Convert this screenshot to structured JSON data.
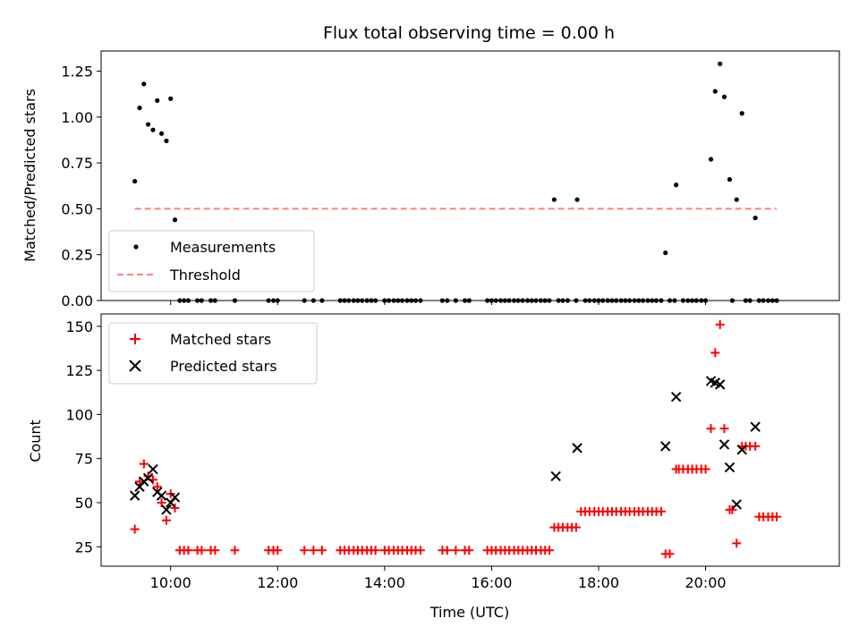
{
  "title": "Flux total observing time = 0.00 h",
  "chart_data": [
    {
      "type": "scatter",
      "panel": "top",
      "ylabel": "Matched/Predicted stars",
      "ylim": [
        0,
        1.36
      ],
      "yticks": [
        0.0,
        0.25,
        0.5,
        0.75,
        1.0,
        1.25
      ],
      "ytick_labels": [
        "0.00",
        "0.25",
        "0.50",
        "0.75",
        "1.00",
        "1.25"
      ],
      "xlim": [
        8.7,
        22.5
      ],
      "legend": {
        "position": "lower-left",
        "entries": [
          {
            "label": "Measurements",
            "marker": "dot",
            "color": "#000000"
          },
          {
            "label": "Threshold",
            "marker": "dashed-line",
            "color": "#ff7f7f"
          }
        ]
      },
      "threshold": {
        "y": 0.5,
        "x": [
          9.33,
          21.33
        ],
        "color": "#ff7f7f"
      },
      "series": [
        {
          "name": "Measurements",
          "color": "#000000",
          "points": [
            [
              9.33,
              0.65
            ],
            [
              9.42,
              1.05
            ],
            [
              9.5,
              1.18
            ],
            [
              9.58,
              0.96
            ],
            [
              9.67,
              0.93
            ],
            [
              9.75,
              1.09
            ],
            [
              9.83,
              0.91
            ],
            [
              9.92,
              0.87
            ],
            [
              10.0,
              1.1
            ],
            [
              10.08,
              0.44
            ],
            [
              17.17,
              0.55
            ],
            [
              17.6,
              0.55
            ],
            [
              19.25,
              0.26
            ],
            [
              19.45,
              0.63
            ],
            [
              20.1,
              0.77
            ],
            [
              20.18,
              1.14
            ],
            [
              20.27,
              1.29
            ],
            [
              20.35,
              1.11
            ],
            [
              20.45,
              0.66
            ],
            [
              20.58,
              0.55
            ],
            [
              20.68,
              1.02
            ],
            [
              20.93,
              0.45
            ],
            [
              10.17,
              0
            ],
            [
              10.25,
              0
            ],
            [
              10.33,
              0
            ],
            [
              10.5,
              0
            ],
            [
              10.58,
              0
            ],
            [
              10.75,
              0
            ],
            [
              10.83,
              0
            ],
            [
              11.2,
              0
            ],
            [
              11.83,
              0
            ],
            [
              11.92,
              0
            ],
            [
              12.0,
              0
            ],
            [
              12.5,
              0
            ],
            [
              12.67,
              0
            ],
            [
              12.83,
              0
            ],
            [
              13.17,
              0
            ],
            [
              13.25,
              0
            ],
            [
              13.33,
              0
            ],
            [
              13.42,
              0
            ],
            [
              13.5,
              0
            ],
            [
              13.58,
              0
            ],
            [
              13.67,
              0
            ],
            [
              13.75,
              0
            ],
            [
              13.83,
              0
            ],
            [
              14.0,
              0
            ],
            [
              14.08,
              0
            ],
            [
              14.17,
              0
            ],
            [
              14.25,
              0
            ],
            [
              14.33,
              0
            ],
            [
              14.42,
              0
            ],
            [
              14.5,
              0
            ],
            [
              14.58,
              0
            ],
            [
              14.67,
              0
            ],
            [
              15.08,
              0
            ],
            [
              15.17,
              0
            ],
            [
              15.33,
              0
            ],
            [
              15.5,
              0
            ],
            [
              15.58,
              0
            ],
            [
              15.92,
              0
            ],
            [
              16.0,
              0
            ],
            [
              16.08,
              0
            ],
            [
              16.17,
              0
            ],
            [
              16.25,
              0
            ],
            [
              16.33,
              0
            ],
            [
              16.42,
              0
            ],
            [
              16.5,
              0
            ],
            [
              16.58,
              0
            ],
            [
              16.67,
              0
            ],
            [
              16.75,
              0
            ],
            [
              16.83,
              0
            ],
            [
              16.92,
              0
            ],
            [
              17.0,
              0
            ],
            [
              17.08,
              0
            ],
            [
              17.25,
              0
            ],
            [
              17.33,
              0
            ],
            [
              17.42,
              0
            ],
            [
              17.58,
              0
            ],
            [
              17.75,
              0
            ],
            [
              17.83,
              0
            ],
            [
              17.92,
              0
            ],
            [
              18.0,
              0
            ],
            [
              18.08,
              0
            ],
            [
              18.17,
              0
            ],
            [
              18.25,
              0
            ],
            [
              18.33,
              0
            ],
            [
              18.42,
              0
            ],
            [
              18.5,
              0
            ],
            [
              18.58,
              0
            ],
            [
              18.67,
              0
            ],
            [
              18.75,
              0
            ],
            [
              18.83,
              0
            ],
            [
              18.92,
              0
            ],
            [
              19.0,
              0
            ],
            [
              19.08,
              0
            ],
            [
              19.17,
              0
            ],
            [
              19.33,
              0
            ],
            [
              19.42,
              0
            ],
            [
              19.58,
              0
            ],
            [
              19.67,
              0
            ],
            [
              19.75,
              0
            ],
            [
              19.83,
              0
            ],
            [
              19.92,
              0
            ],
            [
              20.0,
              0
            ],
            [
              20.5,
              0
            ],
            [
              20.75,
              0
            ],
            [
              20.83,
              0
            ],
            [
              21.0,
              0
            ],
            [
              21.08,
              0
            ],
            [
              21.17,
              0
            ],
            [
              21.25,
              0
            ],
            [
              21.33,
              0
            ]
          ]
        }
      ]
    },
    {
      "type": "scatter",
      "panel": "bottom",
      "xlabel": "Time (UTC)",
      "ylabel": "Count",
      "ylim": [
        14,
        157
      ],
      "yticks": [
        25,
        50,
        75,
        100,
        125,
        150
      ],
      "ytick_labels": [
        "25",
        "50",
        "75",
        "100",
        "125",
        "150"
      ],
      "xlim": [
        8.7,
        22.5
      ],
      "xticks": [
        10,
        12,
        14,
        16,
        18,
        20
      ],
      "xtick_labels": [
        "10:00",
        "12:00",
        "14:00",
        "16:00",
        "18:00",
        "20:00"
      ],
      "legend": {
        "position": "top-left",
        "entries": [
          {
            "label": "Matched stars",
            "marker": "plus",
            "color": "#ff0000"
          },
          {
            "label": "Predicted stars",
            "marker": "x",
            "color": "#000000"
          }
        ]
      },
      "series": [
        {
          "name": "Matched stars",
          "marker": "plus",
          "color": "#ff0000",
          "points": [
            [
              9.33,
              35
            ],
            [
              9.42,
              62
            ],
            [
              9.5,
              72
            ],
            [
              9.58,
              65
            ],
            [
              9.67,
              63
            ],
            [
              9.75,
              59
            ],
            [
              9.83,
              50
            ],
            [
              9.92,
              40
            ],
            [
              10.0,
              55
            ],
            [
              10.08,
              47
            ],
            [
              10.17,
              23
            ],
            [
              10.25,
              23
            ],
            [
              10.33,
              23
            ],
            [
              10.5,
              23
            ],
            [
              10.58,
              23
            ],
            [
              10.75,
              23
            ],
            [
              10.83,
              23
            ],
            [
              11.2,
              23
            ],
            [
              11.83,
              23
            ],
            [
              11.92,
              23
            ],
            [
              12.0,
              23
            ],
            [
              12.5,
              23
            ],
            [
              12.67,
              23
            ],
            [
              12.83,
              23
            ],
            [
              13.17,
              23
            ],
            [
              13.25,
              23
            ],
            [
              13.33,
              23
            ],
            [
              13.42,
              23
            ],
            [
              13.5,
              23
            ],
            [
              13.58,
              23
            ],
            [
              13.67,
              23
            ],
            [
              13.75,
              23
            ],
            [
              13.83,
              23
            ],
            [
              14.0,
              23
            ],
            [
              14.08,
              23
            ],
            [
              14.17,
              23
            ],
            [
              14.25,
              23
            ],
            [
              14.33,
              23
            ],
            [
              14.42,
              23
            ],
            [
              14.5,
              23
            ],
            [
              14.58,
              23
            ],
            [
              14.67,
              23
            ],
            [
              15.08,
              23
            ],
            [
              15.17,
              23
            ],
            [
              15.33,
              23
            ],
            [
              15.5,
              23
            ],
            [
              15.58,
              23
            ],
            [
              15.92,
              23
            ],
            [
              16.0,
              23
            ],
            [
              16.08,
              23
            ],
            [
              16.17,
              23
            ],
            [
              16.25,
              23
            ],
            [
              16.33,
              23
            ],
            [
              16.42,
              23
            ],
            [
              16.5,
              23
            ],
            [
              16.58,
              23
            ],
            [
              16.67,
              23
            ],
            [
              16.75,
              23
            ],
            [
              16.83,
              23
            ],
            [
              16.92,
              23
            ],
            [
              17.0,
              23
            ],
            [
              17.08,
              23
            ],
            [
              17.17,
              36
            ],
            [
              17.25,
              36
            ],
            [
              17.33,
              36
            ],
            [
              17.42,
              36
            ],
            [
              17.5,
              36
            ],
            [
              17.58,
              36
            ],
            [
              17.67,
              45
            ],
            [
              17.75,
              45
            ],
            [
              17.83,
              45
            ],
            [
              17.92,
              45
            ],
            [
              18.0,
              45
            ],
            [
              18.08,
              45
            ],
            [
              18.17,
              45
            ],
            [
              18.25,
              45
            ],
            [
              18.33,
              45
            ],
            [
              18.42,
              45
            ],
            [
              18.5,
              45
            ],
            [
              18.58,
              45
            ],
            [
              18.67,
              45
            ],
            [
              18.75,
              45
            ],
            [
              18.83,
              45
            ],
            [
              18.92,
              45
            ],
            [
              19.0,
              45
            ],
            [
              19.08,
              45
            ],
            [
              19.17,
              45
            ],
            [
              19.25,
              21
            ],
            [
              19.33,
              21
            ],
            [
              19.45,
              69
            ],
            [
              19.5,
              69
            ],
            [
              19.58,
              69
            ],
            [
              19.67,
              69
            ],
            [
              19.75,
              69
            ],
            [
              19.83,
              69
            ],
            [
              19.92,
              69
            ],
            [
              20.0,
              69
            ],
            [
              20.1,
              92
            ],
            [
              20.18,
              135
            ],
            [
              20.27,
              151
            ],
            [
              20.35,
              92
            ],
            [
              20.45,
              46
            ],
            [
              20.5,
              46
            ],
            [
              20.58,
              27
            ],
            [
              20.68,
              82
            ],
            [
              20.75,
              82
            ],
            [
              20.83,
              82
            ],
            [
              20.93,
              82
            ],
            [
              21.0,
              42
            ],
            [
              21.08,
              42
            ],
            [
              21.17,
              42
            ],
            [
              21.25,
              42
            ],
            [
              21.33,
              42
            ]
          ]
        },
        {
          "name": "Predicted stars",
          "marker": "x",
          "color": "#000000",
          "points": [
            [
              9.33,
              54
            ],
            [
              9.42,
              59
            ],
            [
              9.5,
              62
            ],
            [
              9.58,
              64
            ],
            [
              9.67,
              69
            ],
            [
              9.75,
              56
            ],
            [
              9.83,
              54
            ],
            [
              9.92,
              46
            ],
            [
              10.0,
              50
            ],
            [
              10.08,
              53
            ],
            [
              17.2,
              65
            ],
            [
              17.6,
              81
            ],
            [
              19.25,
              82
            ],
            [
              19.45,
              110
            ],
            [
              20.1,
              119
            ],
            [
              20.18,
              118
            ],
            [
              20.27,
              117
            ],
            [
              20.35,
              83
            ],
            [
              20.45,
              70
            ],
            [
              20.58,
              49
            ],
            [
              20.68,
              80
            ],
            [
              20.93,
              93
            ]
          ]
        }
      ]
    }
  ]
}
